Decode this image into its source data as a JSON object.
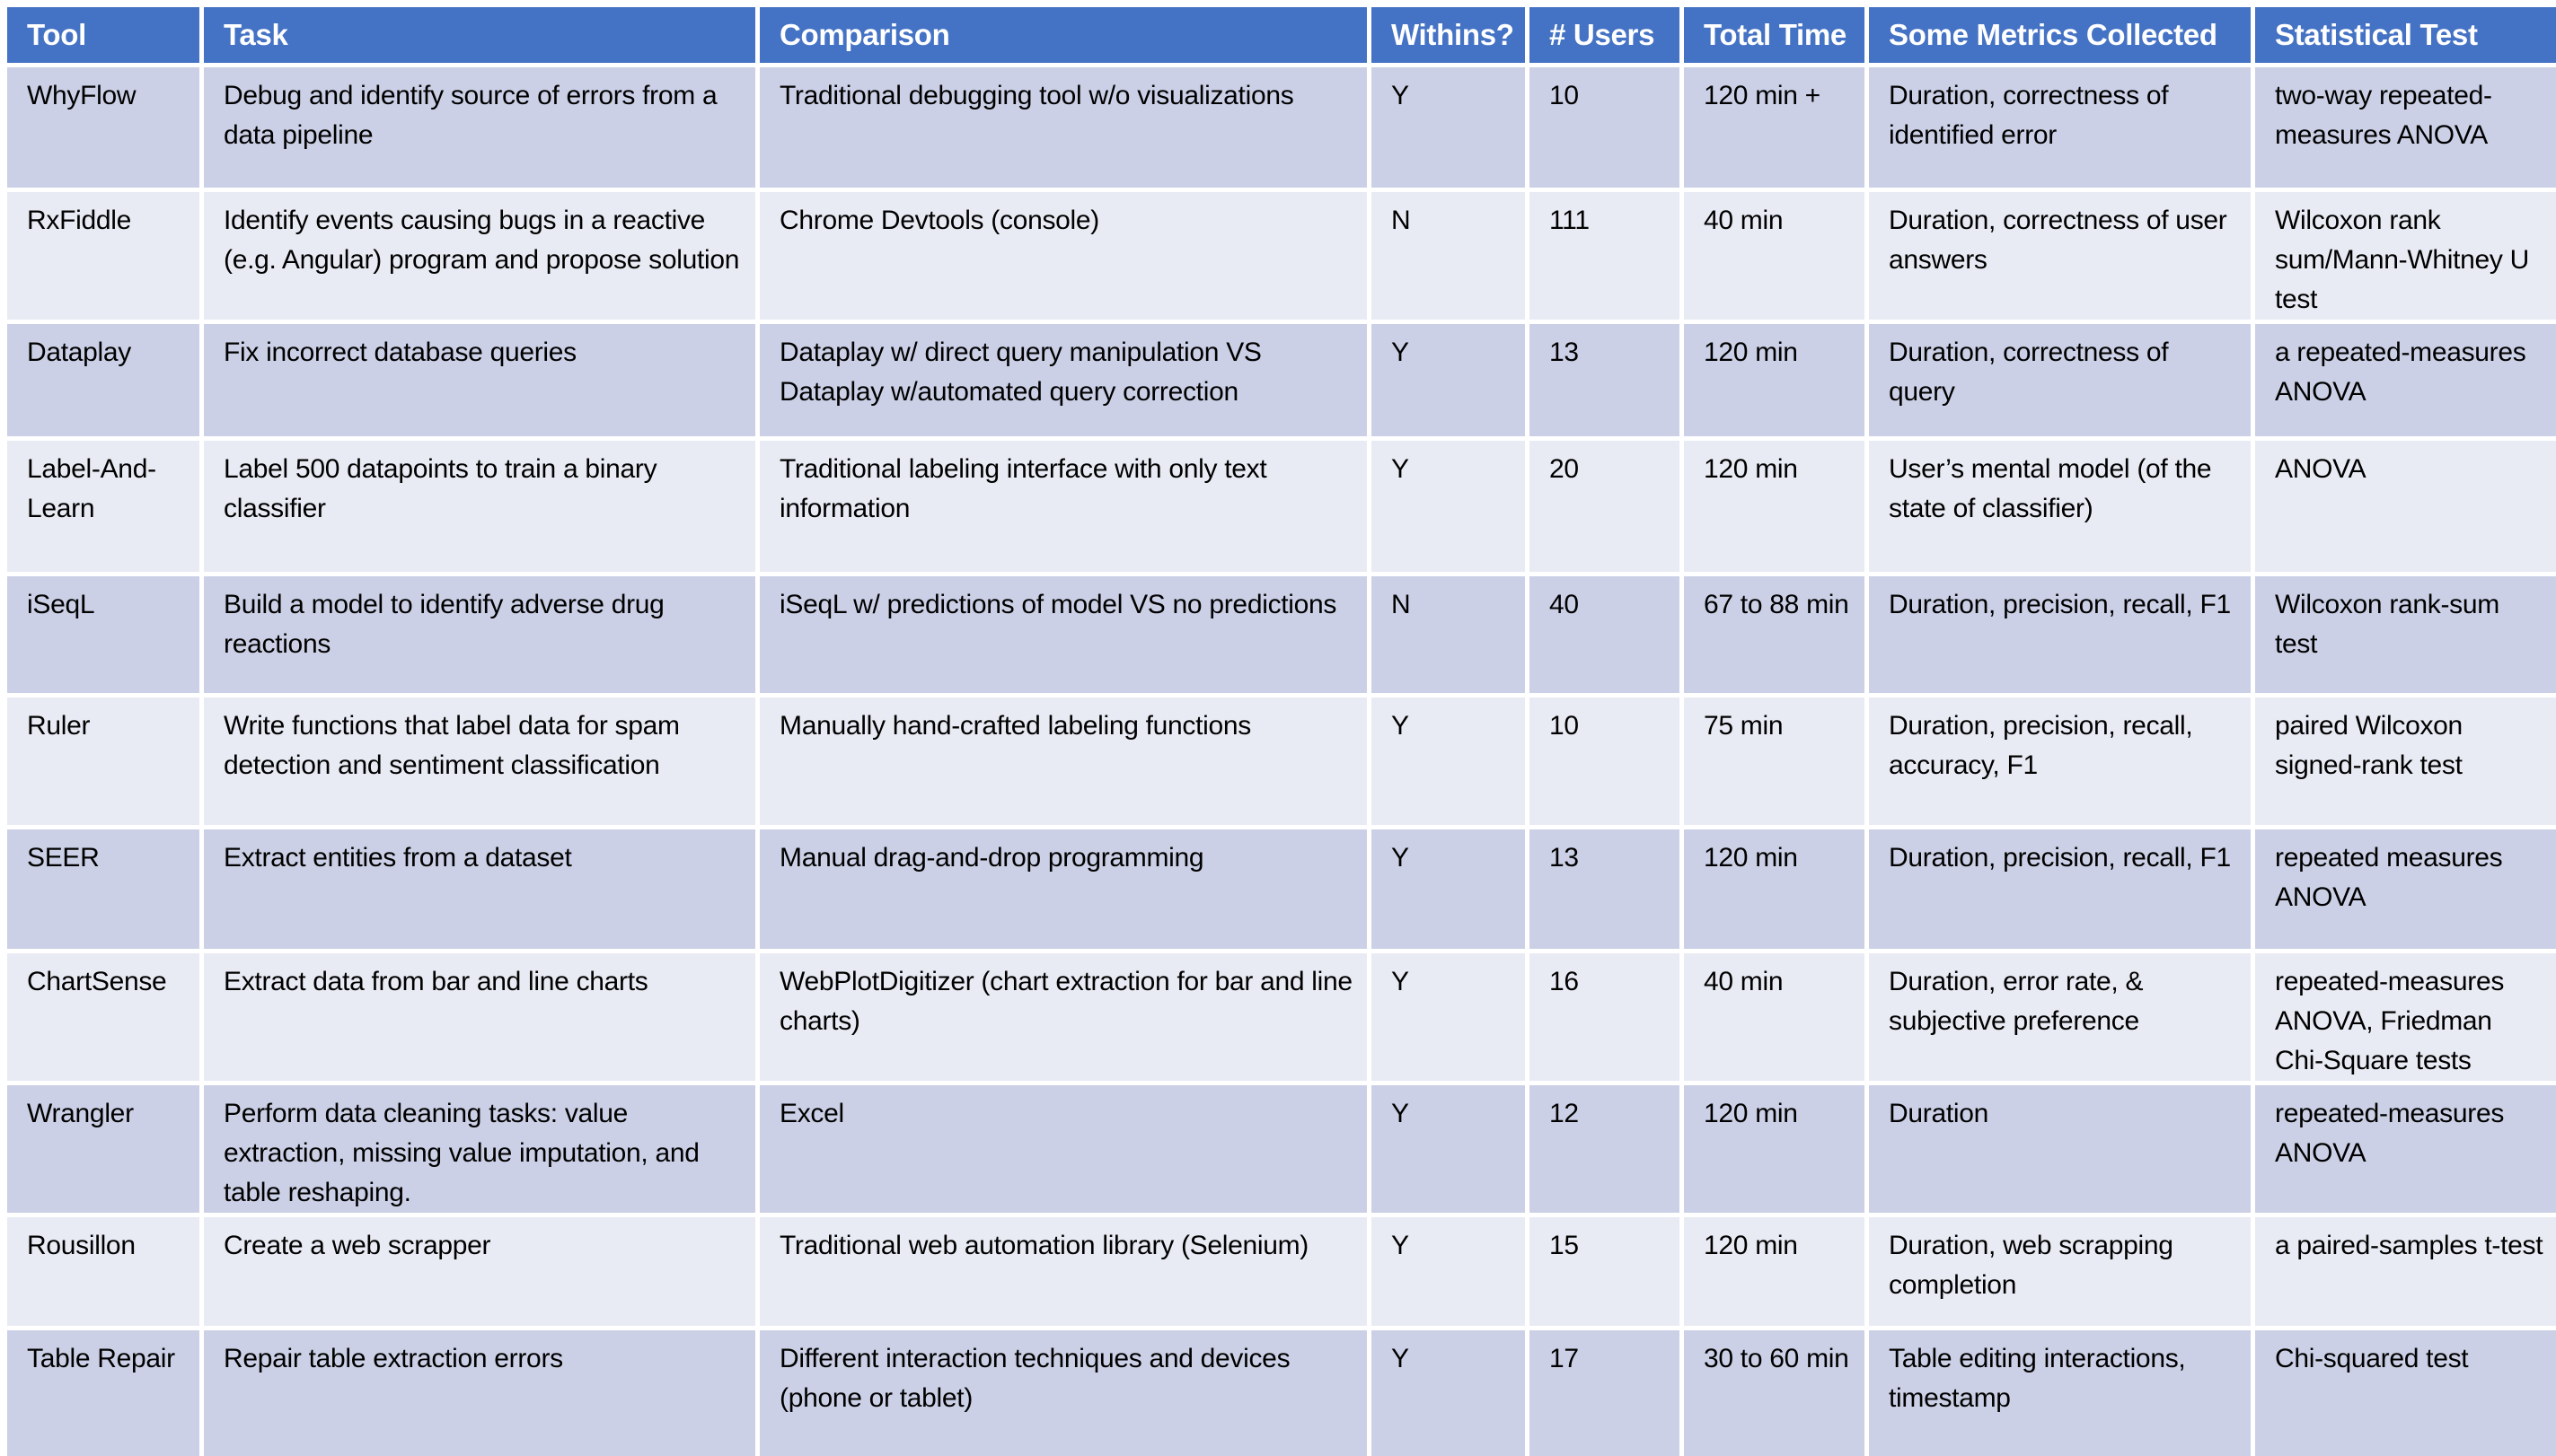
{
  "table": {
    "columns": [
      {
        "key": "tool",
        "label": "Tool"
      },
      {
        "key": "task",
        "label": "Task"
      },
      {
        "key": "comparison",
        "label": "Comparison"
      },
      {
        "key": "withins",
        "label": "Withins?"
      },
      {
        "key": "users",
        "label": "# Users"
      },
      {
        "key": "total_time",
        "label": "Total Time"
      },
      {
        "key": "metrics",
        "label": "Some Metrics Collected"
      },
      {
        "key": "stat_test",
        "label": "Statistical Test"
      }
    ],
    "rows": [
      {
        "tool": "WhyFlow",
        "task": "Debug and identify source of errors from a data pipeline",
        "comparison": "Traditional debugging tool w/o visualizations",
        "withins": "Y",
        "users": "10",
        "total_time": "120 min +",
        "metrics": "Duration, correctness of identified error",
        "stat_test": "two-way repeated-measures ANOVA"
      },
      {
        "tool": "RxFiddle",
        "task": "Identify events causing bugs in a reactive (e.g. Angular) program and propose solution",
        "comparison": "Chrome Devtools (console)",
        "withins": "N",
        "users": "111",
        "total_time": "40 min",
        "metrics": "Duration, correctness of user answers",
        "stat_test": "Wilcoxon rank sum/Mann-Whitney U test"
      },
      {
        "tool": "Dataplay",
        "task": "Fix incorrect database queries",
        "comparison": "Dataplay w/ direct query manipulation VS Dataplay w/automated query correction",
        "withins": "Y",
        "users": "13",
        "total_time": "120 min",
        "metrics": "Duration, correctness of query",
        "stat_test": "a repeated-measures ANOVA"
      },
      {
        "tool": "Label-And-Learn",
        "task": "Label 500 datapoints to train a binary classifier",
        "comparison": "Traditional labeling interface with only text information",
        "withins": "Y",
        "users": "20",
        "total_time": "120 min",
        "metrics": "User’s mental model (of the state of classifier)",
        "stat_test": "ANOVA"
      },
      {
        "tool": "iSeqL",
        "task": "Build a model to identify adverse drug reactions",
        "comparison": "iSeqL w/ predictions of model VS no predictions",
        "withins": "N",
        "users": "40",
        "total_time": "67 to 88 min",
        "metrics": "Duration, precision, recall, F1",
        "stat_test": "Wilcoxon rank-sum test"
      },
      {
        "tool": "Ruler",
        "task": "Write functions that label data for spam detection and sentiment classification",
        "comparison": "Manually hand-crafted labeling functions",
        "withins": "Y",
        "users": "10",
        "total_time": "75 min",
        "metrics": "Duration, precision, recall, accuracy, F1",
        "stat_test": "paired Wilcoxon signed-rank test"
      },
      {
        "tool": "SEER",
        "task": "Extract entities from a dataset",
        "comparison": "Manual drag-and-drop programming",
        "withins": "Y",
        "users": "13",
        "total_time": "120 min",
        "metrics": "Duration, precision, recall, F1",
        "stat_test": "repeated measures ANOVA"
      },
      {
        "tool": "ChartSense",
        "task": "Extract data from bar and line charts",
        "comparison": "WebPlotDigitizer (chart extraction for bar and line charts)",
        "withins": "Y",
        "users": "16",
        "total_time": "40 min",
        "metrics": "Duration, error rate, & subjective preference",
        "stat_test": "repeated-measures ANOVA, Friedman Chi-Square tests"
      },
      {
        "tool": "Wrangler",
        "task": "Perform data cleaning tasks: value extraction, missing value imputation, and table reshaping.",
        "comparison": "Excel",
        "withins": "Y",
        "users": "12",
        "total_time": "120 min",
        "metrics": "Duration",
        "stat_test": "repeated-measures ANOVA"
      },
      {
        "tool": "Rousillon",
        "task": "Create a web scrapper",
        "comparison": "Traditional web automation library (Selenium)",
        "withins": "Y",
        "users": "15",
        "total_time": "120 min",
        "metrics": "Duration, web scrapping completion",
        "stat_test": "a paired-samples t-test"
      },
      {
        "tool": "Table Repair",
        "task": "Repair table extraction errors",
        "comparison": "Different interaction techniques and devices (phone or tablet)",
        "withins": "Y",
        "users": "17",
        "total_time": "30 to 60 min",
        "metrics": "Table editing interactions, timestamp",
        "stat_test": "Chi-squared test"
      }
    ]
  },
  "colors": {
    "header_bg": "#4472c4",
    "header_text": "#ffffff",
    "row_dark": "#cbd0e6",
    "row_light": "#e9ebf4",
    "grid_gap": "#ffffff",
    "bottom_rule": "#000000",
    "body_text": "#000000"
  }
}
